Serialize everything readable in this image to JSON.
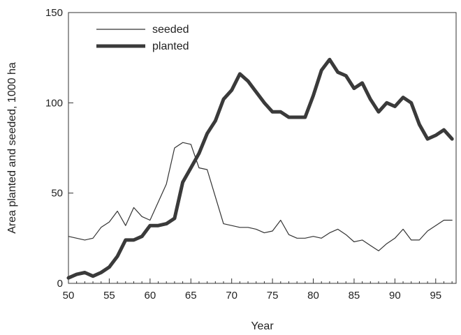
{
  "chart_data": {
    "type": "line",
    "xlabel": "Year",
    "ylabel": "Area planted and seeded, 1000 ha",
    "xlim": [
      50,
      97.5
    ],
    "ylim": [
      0,
      150
    ],
    "xticks": [
      50,
      55,
      60,
      65,
      70,
      75,
      80,
      85,
      90,
      95
    ],
    "yticks": [
      0,
      50,
      100,
      150
    ],
    "grid": false,
    "legend_position": "top-left",
    "series": [
      {
        "name": "seeded",
        "color": "#333333",
        "style": "thin",
        "x": [
          50,
          51,
          52,
          53,
          54,
          55,
          56,
          57,
          58,
          59,
          60,
          61,
          62,
          63,
          64,
          65,
          66,
          67,
          68,
          69,
          70,
          71,
          72,
          73,
          74,
          75,
          76,
          77,
          78,
          79,
          80,
          81,
          82,
          83,
          84,
          85,
          86,
          87,
          88,
          89,
          90,
          91,
          92,
          93,
          94,
          95,
          96,
          97
        ],
        "y": [
          26,
          25,
          24,
          25,
          31,
          34,
          40,
          32,
          42,
          37,
          35,
          45,
          55,
          75,
          78,
          77,
          64,
          63,
          48,
          33,
          32,
          31,
          31,
          30,
          28,
          29,
          35,
          27,
          25,
          25,
          26,
          25,
          28,
          30,
          27,
          23,
          24,
          21,
          18,
          22,
          25,
          30,
          24,
          24,
          29,
          32,
          35,
          35
        ]
      },
      {
        "name": "planted",
        "color": "#3a3a3a",
        "style": "thick",
        "x": [
          50,
          51,
          52,
          53,
          54,
          55,
          56,
          57,
          58,
          59,
          60,
          61,
          62,
          63,
          64,
          65,
          66,
          67,
          68,
          69,
          70,
          71,
          72,
          73,
          74,
          75,
          76,
          77,
          78,
          79,
          80,
          81,
          82,
          83,
          84,
          85,
          86,
          87,
          88,
          89,
          90,
          91,
          92,
          93,
          94,
          95,
          96,
          97
        ],
        "y": [
          3,
          5,
          6,
          4,
          6,
          9,
          15,
          24,
          24,
          26,
          32,
          32,
          33,
          36,
          56,
          64,
          72,
          83,
          90,
          102,
          107,
          116,
          112,
          106,
          100,
          95,
          95,
          92,
          92,
          92,
          104,
          118,
          124,
          117,
          115,
          108,
          111,
          102,
          95,
          100,
          98,
          103,
          100,
          88,
          80,
          82,
          85,
          80
        ]
      }
    ]
  }
}
